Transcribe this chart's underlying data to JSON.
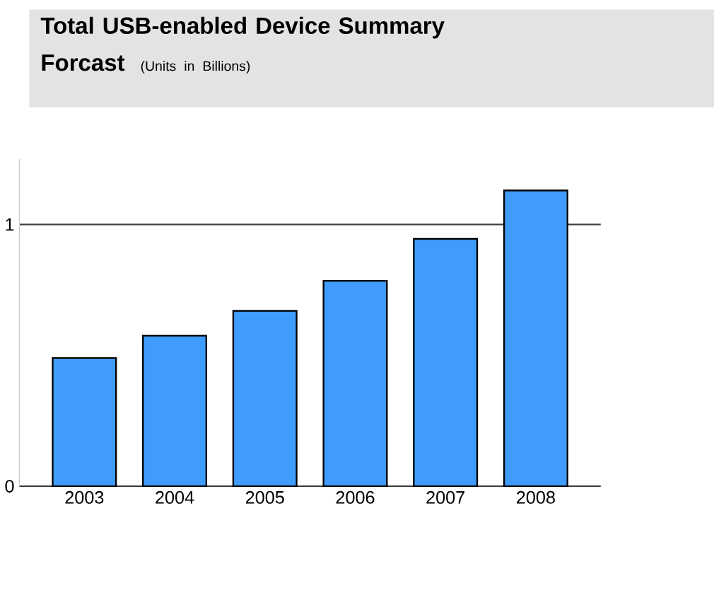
{
  "chart_data": {
    "type": "bar",
    "title": "Total USB-enabled Device Summary Forcast",
    "subtitle": "(Units in Billions)",
    "categories": [
      "2003",
      "2004",
      "2005",
      "2006",
      "2007",
      "2008"
    ],
    "values": [
      0.49,
      0.575,
      0.67,
      0.785,
      0.945,
      1.13
    ],
    "color": "#3f9cfc",
    "ylim": [
      0,
      1.25
    ],
    "yticks": [
      0,
      1
    ],
    "grid": "y"
  }
}
